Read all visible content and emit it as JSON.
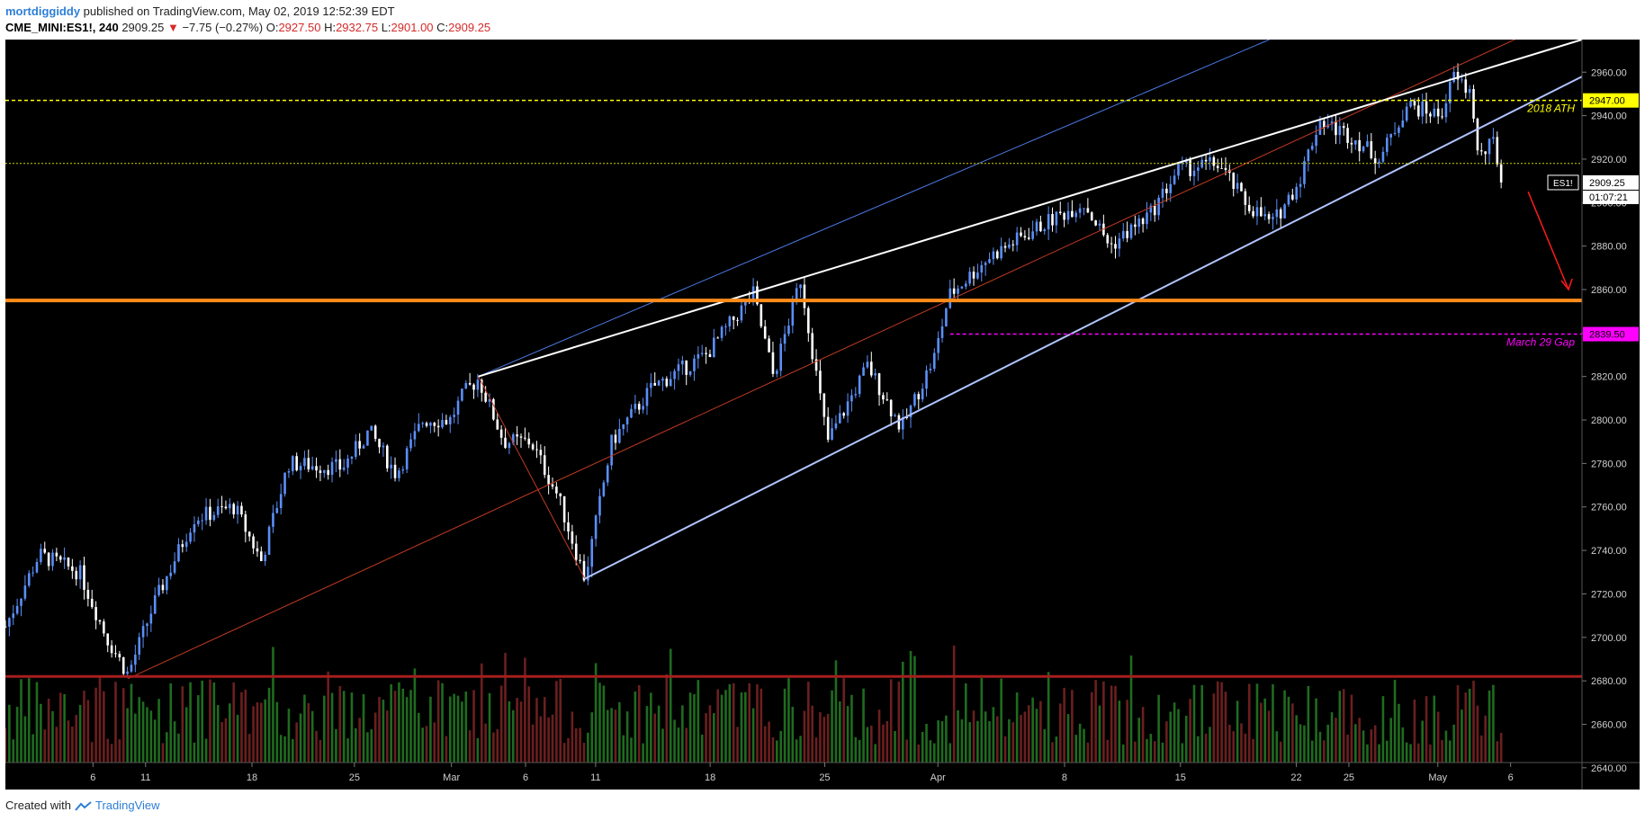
{
  "header": {
    "author": "mortdiggiddy",
    "published_text": "published on TradingView.com, May 02, 2019 12:52:39 EDT",
    "symbol": "CME_MINI:ES1!, 240",
    "last": "2909.25",
    "change_arrow": "▼",
    "change": "−7.75 (−0.27%)",
    "o_label": "O:",
    "o_value": "2927.50",
    "h_label": "H:",
    "h_value": "2932.75",
    "l_label": "L:",
    "l_value": "2901.00",
    "c_label": "C:",
    "c_value": "2909.25"
  },
  "footer": {
    "created_with": "Created with",
    "brand": "TradingView",
    "brand_icon": "tradingview-logo-icon"
  },
  "chart_data": {
    "type": "candlestick",
    "symbol": "CME_MINI:ES1!",
    "interval": "240",
    "ylim": [
      2630,
      2975
    ],
    "y_ticks": [
      2640,
      2660,
      2680,
      2700,
      2720,
      2740,
      2760,
      2780,
      2800,
      2820,
      2840,
      2860,
      2880,
      2900,
      2920,
      2940,
      2960
    ],
    "x_ticks": [
      {
        "label": "6",
        "x": 0.065
      },
      {
        "label": "11",
        "x": 0.104
      },
      {
        "label": "18",
        "x": 0.183
      },
      {
        "label": "25",
        "x": 0.259
      },
      {
        "label": "Mar",
        "x": 0.331
      },
      {
        "label": "6",
        "x": 0.386
      },
      {
        "label": "11",
        "x": 0.438
      },
      {
        "label": "18",
        "x": 0.523
      },
      {
        "label": "25",
        "x": 0.608
      },
      {
        "label": "Apr",
        "x": 0.692
      },
      {
        "label": "8",
        "x": 0.786
      },
      {
        "label": "15",
        "x": 0.872
      },
      {
        "label": "22",
        "x": 0.958
      },
      {
        "label": "25",
        "x": 0.997
      },
      {
        "label": "May",
        "x": 1.063
      },
      {
        "label": "6",
        "x": 1.117
      }
    ],
    "key_points": [
      {
        "x": 0.0,
        "y": 2705
      },
      {
        "x": 0.025,
        "y": 2738
      },
      {
        "x": 0.055,
        "y": 2730
      },
      {
        "x": 0.075,
        "y": 2700
      },
      {
        "x": 0.091,
        "y": 2683
      },
      {
        "x": 0.11,
        "y": 2715
      },
      {
        "x": 0.14,
        "y": 2755
      },
      {
        "x": 0.17,
        "y": 2760
      },
      {
        "x": 0.19,
        "y": 2735
      },
      {
        "x": 0.21,
        "y": 2780
      },
      {
        "x": 0.25,
        "y": 2778
      },
      {
        "x": 0.27,
        "y": 2795
      },
      {
        "x": 0.29,
        "y": 2775
      },
      {
        "x": 0.31,
        "y": 2800
      },
      {
        "x": 0.33,
        "y": 2800
      },
      {
        "x": 0.34,
        "y": 2812
      },
      {
        "x": 0.351,
        "y": 2819
      },
      {
        "x": 0.37,
        "y": 2790
      },
      {
        "x": 0.39,
        "y": 2790
      },
      {
        "x": 0.41,
        "y": 2765
      },
      {
        "x": 0.43,
        "y": 2727
      },
      {
        "x": 0.45,
        "y": 2790
      },
      {
        "x": 0.48,
        "y": 2815
      },
      {
        "x": 0.52,
        "y": 2830
      },
      {
        "x": 0.555,
        "y": 2858
      },
      {
        "x": 0.57,
        "y": 2820
      },
      {
        "x": 0.59,
        "y": 2865
      },
      {
        "x": 0.61,
        "y": 2790
      },
      {
        "x": 0.64,
        "y": 2825
      },
      {
        "x": 0.665,
        "y": 2796
      },
      {
        "x": 0.69,
        "y": 2830
      },
      {
        "x": 0.7,
        "y": 2857
      },
      {
        "x": 0.73,
        "y": 2875
      },
      {
        "x": 0.77,
        "y": 2890
      },
      {
        "x": 0.8,
        "y": 2900
      },
      {
        "x": 0.82,
        "y": 2880
      },
      {
        "x": 0.85,
        "y": 2895
      },
      {
        "x": 0.87,
        "y": 2915
      },
      {
        "x": 0.9,
        "y": 2918
      },
      {
        "x": 0.92,
        "y": 2900
      },
      {
        "x": 0.94,
        "y": 2890
      },
      {
        "x": 0.96,
        "y": 2910
      },
      {
        "x": 0.975,
        "y": 2938
      },
      {
        "x": 1.0,
        "y": 2930
      },
      {
        "x": 1.02,
        "y": 2920
      },
      {
        "x": 1.04,
        "y": 2945
      },
      {
        "x": 1.065,
        "y": 2940
      },
      {
        "x": 1.075,
        "y": 2958
      },
      {
        "x": 1.088,
        "y": 2950
      },
      {
        "x": 1.093,
        "y": 2920
      },
      {
        "x": 1.105,
        "y": 2928
      },
      {
        "x": 1.11,
        "y": 2909.25
      }
    ],
    "annotations": {
      "resistance_2947": {
        "price": 2947.0,
        "label": "2018 ATH",
        "price_label": "2947.00",
        "color": "#ffff00"
      },
      "level_2918": {
        "price": 2918,
        "color": "#d4d400"
      },
      "support_orange": {
        "price": 2855,
        "color": "#ff8c1a"
      },
      "gap_line": {
        "price": 2839.5,
        "label": "March 29 Gap",
        "price_label": "2839.50",
        "color": "#ff00ff"
      },
      "red_line": {
        "price": 2682,
        "color": "#a51e1e"
      },
      "current_price": {
        "symbol": "ES1!",
        "price": 2909.25,
        "price_label": "2909.25",
        "countdown": "01:07:21"
      }
    }
  }
}
